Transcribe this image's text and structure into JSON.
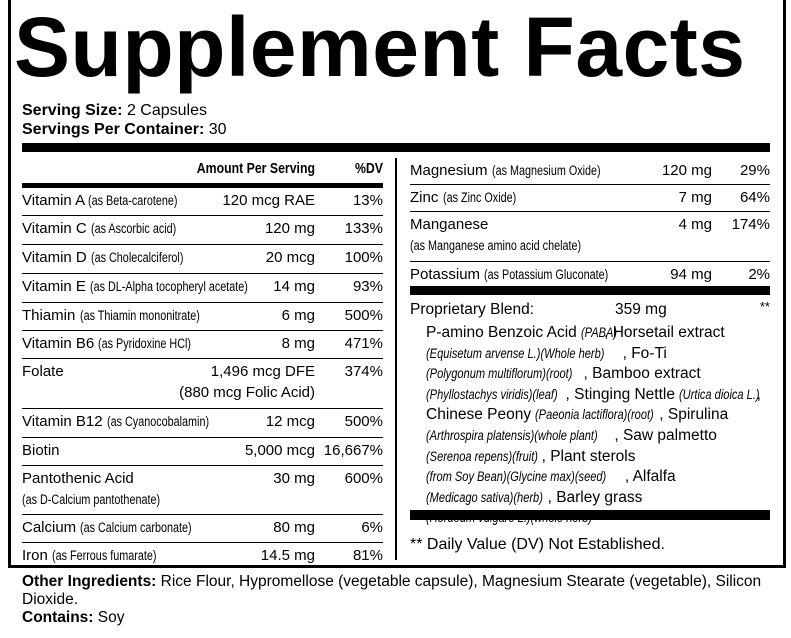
{
  "title": "Supplement Facts",
  "serving": {
    "size_label": "Serving Size:",
    "size_value": "2 Capsules",
    "per_container_label": "Servings Per Container:",
    "per_container_value": "30"
  },
  "header": {
    "amount": "Amount Per Serving",
    "dv": "%DV"
  },
  "left_rows": [
    {
      "name": "Vitamin A",
      "source": "(as Beta-carotene)",
      "amount": "120 mcg RAE",
      "dv": "13%"
    },
    {
      "name": "Vitamin C",
      "source": "(as Ascorbic acid)",
      "amount": "120 mg",
      "dv": "133%"
    },
    {
      "name": "Vitamin D",
      "source": "(as Cholecalciferol)",
      "amount": "20 mcg",
      "dv": "100%"
    },
    {
      "name": "Vitamin E",
      "source": "(as DL-Alpha tocopheryl acetate)",
      "amount": "14 mg",
      "dv": "93%"
    },
    {
      "name": "Thiamin",
      "source": "(as Thiamin mononitrate)",
      "amount": "6 mg",
      "dv": "500%"
    },
    {
      "name": "Vitamin B6",
      "source": "(as Pyridoxine HCl)",
      "amount": "8 mg",
      "dv": "471%"
    },
    {
      "name": "Folate",
      "source": "",
      "amount": "1,496 mcg DFE",
      "amount2": "(880 mcg Folic Acid)",
      "dv": "374%"
    },
    {
      "name": "Vitamin B12",
      "source": "(as Cyanocobalamin)",
      "amount": "12 mcg",
      "dv": "500%"
    },
    {
      "name": "Biotin",
      "source": "",
      "amount": "5,000 mcg",
      "dv": "16,667%"
    },
    {
      "name": "Pantothenic Acid",
      "source2": "(as  D-Calcium pantothenate)",
      "amount": "30 mg",
      "dv": "600%"
    },
    {
      "name": "Calcium",
      "source": "(as Calcium carbonate)",
      "amount": "80 mg",
      "dv": "6%"
    },
    {
      "name": "Iron",
      "source": "(as Ferrous fumarate)",
      "amount": "14.5 mg",
      "dv": "81%"
    }
  ],
  "right_rows": [
    {
      "name": "Magnesium",
      "source": "(as Magnesium Oxide)",
      "amount": "120 mg",
      "dv": "29%"
    },
    {
      "name": "Zinc",
      "source": "(as Zinc Oxide)",
      "amount": "7 mg",
      "dv": "64%"
    },
    {
      "name": "Manganese",
      "source2": "(as Manganese amino acid chelate)",
      "amount": "4 mg",
      "dv": "174%"
    },
    {
      "name": "Potassium",
      "source": "(as Potassium Gluconate)",
      "amount": "94 mg",
      "dv": "2%"
    }
  ],
  "blend": {
    "label": "Proprietary Blend:",
    "amount": "359 mg",
    "dv": "**",
    "ingredients": [
      {
        "name": "P-amino Benzoic Acid",
        "detail": "(PABA)"
      },
      {
        "name": "Horsetail extract",
        "detail": "(Equisetum arvense L.)(Whole herb)"
      },
      {
        "name": "Fo-Ti",
        "detail": "(Polygonum multiflorum)(root)"
      },
      {
        "name": "Bamboo extract",
        "detail": "(Phyllostachys viridis)(leaf)"
      },
      {
        "name": "Stinging Nettle",
        "detail": "(Urtica dioica L.)"
      },
      {
        "name": "Chinese Peony",
        "detail": "(Paeonia lactiflora)(root)"
      },
      {
        "name": "Spirulina",
        "detail": "(Arthrospira platensis)(whole plant)"
      },
      {
        "name": "Saw palmetto",
        "detail": "(Serenoa repens)(fruit)"
      },
      {
        "name": "Plant sterols",
        "detail": "(from Soy Bean)(Glycine max)(seed)"
      },
      {
        "name": "Alfalfa",
        "detail": "(Medicago sativa)(herb)"
      },
      {
        "name": "Barley grass",
        "detail": "(Hordeum vulgare L.)(whole herb)"
      }
    ]
  },
  "dv_note": "** Daily Value (DV) Not Established.",
  "footer": {
    "other_label": "Other Ingredients:",
    "other_value": "Rice Flour, Hypromellose (vegetable capsule), Magnesium Stearate (vegetable), Silicon Dioxide.",
    "contains_label": "Contains:",
    "contains_value": "Soy"
  }
}
